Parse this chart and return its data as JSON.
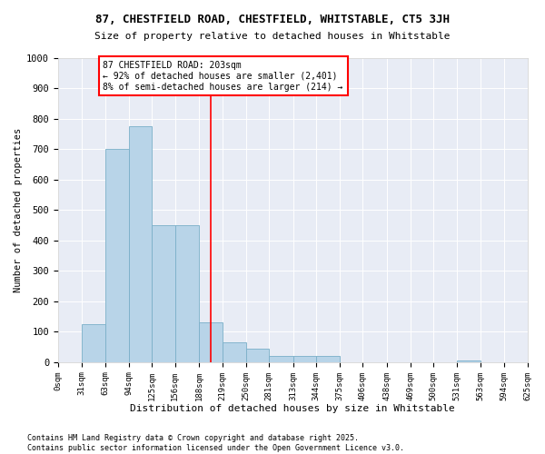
{
  "title_line1": "87, CHESTFIELD ROAD, CHESTFIELD, WHITSTABLE, CT5 3JH",
  "title_line2": "Size of property relative to detached houses in Whitstable",
  "xlabel": "Distribution of detached houses by size in Whitstable",
  "ylabel": "Number of detached properties",
  "bar_color": "#b8d4e8",
  "bar_edge_color": "#7aafc8",
  "bg_color": "#e8ecf5",
  "annotation_text": "87 CHESTFIELD ROAD: 203sqm\n← 92% of detached houses are smaller (2,401)\n8% of semi-detached houses are larger (214) →",
  "vline_x": 203,
  "bin_edges": [
    0,
    31,
    63,
    94,
    125,
    156,
    188,
    219,
    250,
    281,
    313,
    344,
    375,
    406,
    438,
    469,
    500,
    531,
    563,
    594,
    625
  ],
  "bar_heights": [
    0,
    125,
    700,
    775,
    450,
    450,
    130,
    65,
    45,
    20,
    20,
    20,
    0,
    0,
    0,
    0,
    0,
    5,
    0,
    0
  ],
  "ylim": [
    0,
    1000
  ],
  "yticks": [
    0,
    100,
    200,
    300,
    400,
    500,
    600,
    700,
    800,
    900,
    1000
  ],
  "footnote": "Contains HM Land Registry data © Crown copyright and database right 2025.\nContains public sector information licensed under the Open Government Licence v3.0.",
  "annotation_box_color": "white",
  "annotation_edge_color": "red",
  "vline_color": "red",
  "figwidth": 6.0,
  "figheight": 5.0,
  "dpi": 100
}
